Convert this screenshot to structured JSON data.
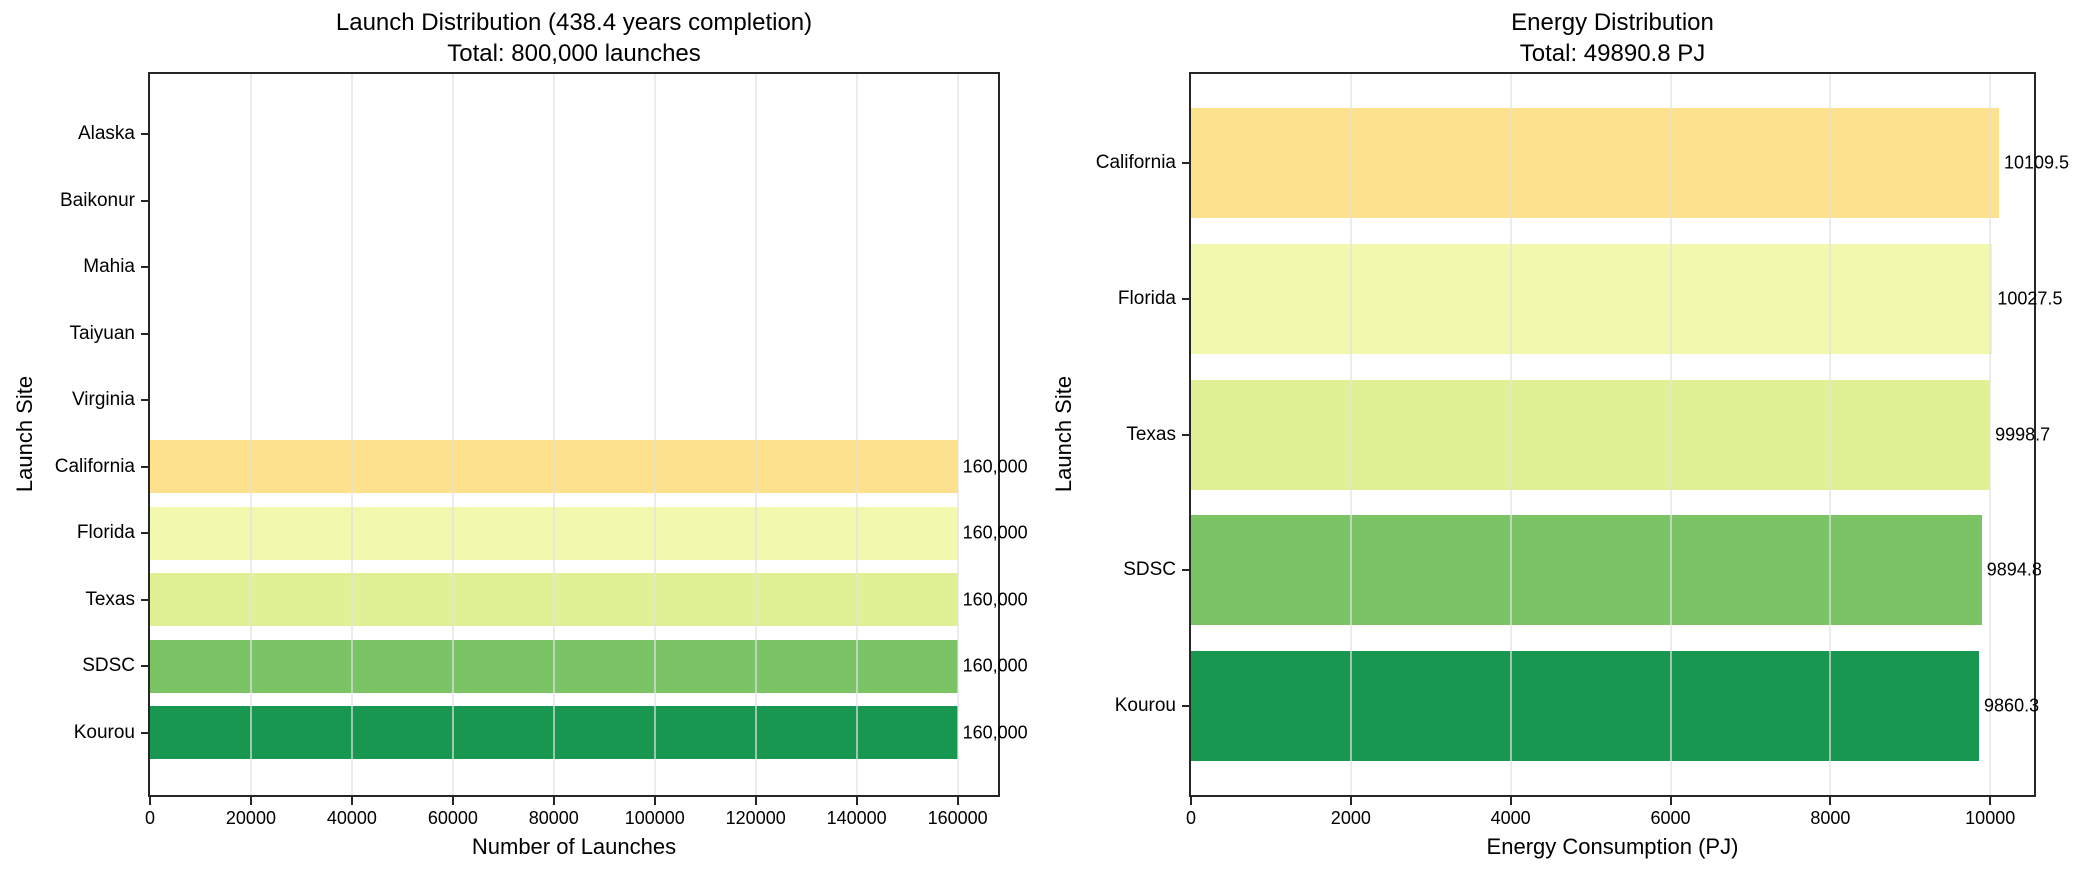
{
  "chart_data": [
    {
      "type": "bar",
      "orientation": "horizontal",
      "title_line1": "Launch Distribution (438.4 years completion)",
      "title_line2": "Total: 800,000 launches",
      "xlabel": "Number of Launches",
      "ylabel": "Launch Site",
      "xlim": [
        0,
        168000
      ],
      "grid": true,
      "xticks": [
        {
          "value": 0,
          "label": "0"
        },
        {
          "value": 20000,
          "label": "20000"
        },
        {
          "value": 40000,
          "label": "40000"
        },
        {
          "value": 60000,
          "label": "60000"
        },
        {
          "value": 80000,
          "label": "80000"
        },
        {
          "value": 100000,
          "label": "100000"
        },
        {
          "value": 120000,
          "label": "120000"
        },
        {
          "value": 140000,
          "label": "140000"
        },
        {
          "value": 160000,
          "label": "160000"
        }
      ],
      "rows": [
        {
          "category": "Alaska",
          "value": 0,
          "value_label": "",
          "color": null
        },
        {
          "category": "Baikonur",
          "value": 0,
          "value_label": "",
          "color": null
        },
        {
          "category": "Mahia",
          "value": 0,
          "value_label": "",
          "color": null
        },
        {
          "category": "Taiyuan",
          "value": 0,
          "value_label": "",
          "color": null
        },
        {
          "category": "Virginia",
          "value": 0,
          "value_label": "",
          "color": null
        },
        {
          "category": "California",
          "value": 160000,
          "value_label": "160,000",
          "color": "#FDE18C"
        },
        {
          "category": "Florida",
          "value": 160000,
          "value_label": "160,000",
          "color": "#F2F9AF"
        },
        {
          "category": "Texas",
          "value": 160000,
          "value_label": "160,000",
          "color": "#E0F195"
        },
        {
          "category": "SDSC",
          "value": 160000,
          "value_label": "160,000",
          "color": "#7AC466"
        },
        {
          "category": "Kourou",
          "value": 160000,
          "value_label": "160,000",
          "color": "#189750"
        }
      ]
    },
    {
      "type": "bar",
      "orientation": "horizontal",
      "title_line1": "Energy Distribution",
      "title_line2": "Total: 49890.8 PJ",
      "xlabel": "Energy Consumption (PJ)",
      "ylabel": "Launch Site",
      "xlim": [
        0,
        10548
      ],
      "grid": true,
      "xticks": [
        {
          "value": 0,
          "label": "0"
        },
        {
          "value": 2000,
          "label": "2000"
        },
        {
          "value": 4000,
          "label": "4000"
        },
        {
          "value": 6000,
          "label": "6000"
        },
        {
          "value": 8000,
          "label": "8000"
        },
        {
          "value": 10000,
          "label": "10000"
        }
      ],
      "rows": [
        {
          "category": "California",
          "value": 10109.5,
          "value_label": "10109.5",
          "color": "#FDE18C"
        },
        {
          "category": "Florida",
          "value": 10027.5,
          "value_label": "10027.5",
          "color": "#F2F9AF"
        },
        {
          "category": "Texas",
          "value": 9998.7,
          "value_label": "9998.7",
          "color": "#E0F195"
        },
        {
          "category": "SDSC",
          "value": 9894.8,
          "value_label": "9894.8",
          "color": "#7AC466"
        },
        {
          "category": "Kourou",
          "value": 9860.3,
          "value_label": "9860.3",
          "color": "#189750"
        }
      ]
    }
  ]
}
